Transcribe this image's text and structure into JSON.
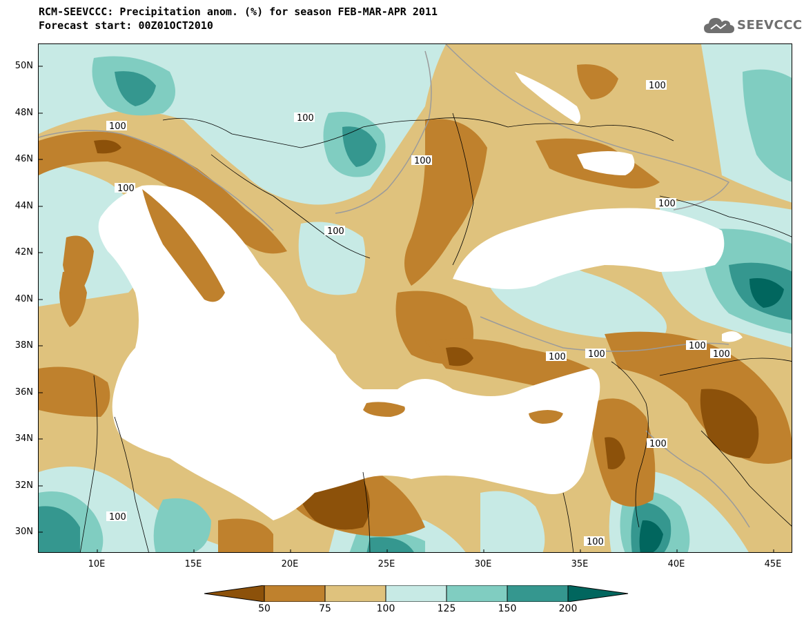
{
  "header": {
    "title_line_1": "RCM-SEEVCCC: Precipitation anom. (%) for season FEB-MAR-APR 2011",
    "title_line_2": "Forecast start: 00Z01OCT2010"
  },
  "logo": {
    "text": "SEEVCCC",
    "icon": "cloud-icon"
  },
  "map": {
    "lat_labels": [
      "50N",
      "48N",
      "46N",
      "44N",
      "42N",
      "40N",
      "38N",
      "36N",
      "34N",
      "32N",
      "30N"
    ],
    "lon_labels": [
      "10E",
      "15E",
      "20E",
      "25E",
      "30E",
      "35E",
      "40E",
      "45E"
    ],
    "contour_labels": [
      "100",
      "100",
      "100",
      "100",
      "100",
      "100",
      "100",
      "100",
      "100",
      "100",
      "100",
      "100",
      "100",
      "100"
    ]
  },
  "legend": {
    "values": [
      "50",
      "75",
      "100",
      "125",
      "150",
      "200"
    ],
    "colors": [
      "#8c510a",
      "#bf812d",
      "#dfc27d",
      "#c7eae5",
      "#80cdc1",
      "#35978f",
      "#01665e"
    ]
  }
}
